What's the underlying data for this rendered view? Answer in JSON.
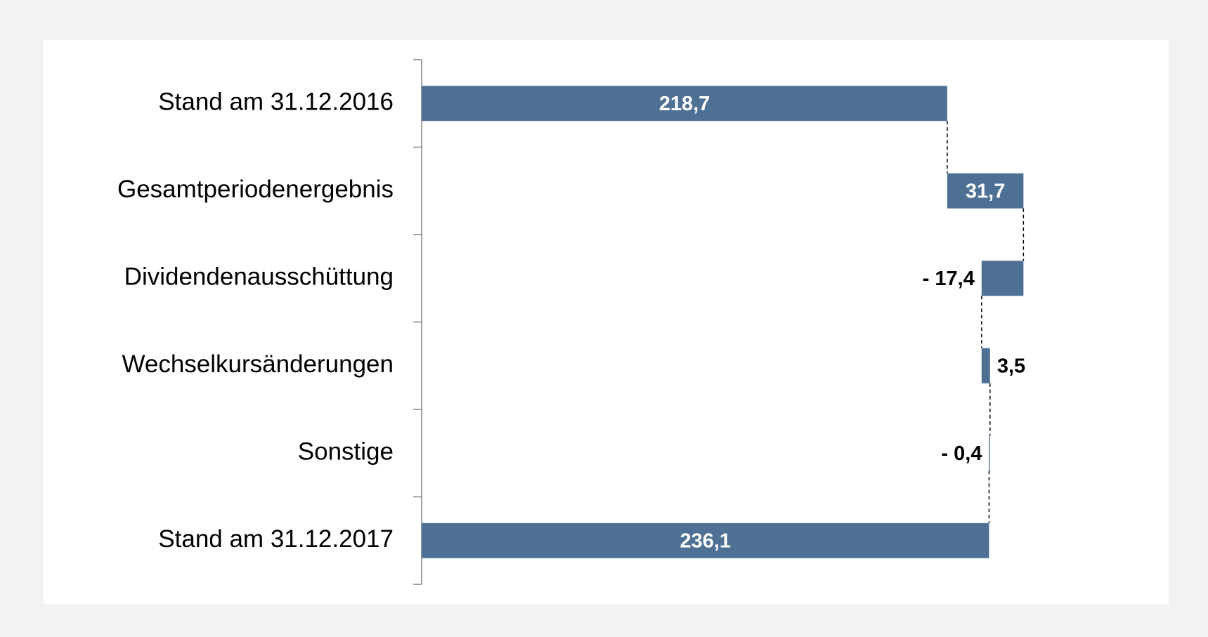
{
  "chart_data": {
    "type": "waterfall",
    "categories": [
      "Stand am 31.12.2016",
      "Gesamtperiodenergebnis",
      "Dividendenausschüttung",
      "Wechselkursänderungen",
      "Sonstige",
      "Stand am 31.12.2017"
    ],
    "measure": [
      "absolute",
      "relative",
      "relative",
      "relative",
      "relative",
      "absolute"
    ],
    "values": [
      218.7,
      31.7,
      -17.4,
      3.5,
      -0.4,
      236.1
    ],
    "value_labels": [
      "218,7",
      "31,7",
      "- 17,4",
      "3,5",
      "- 0,4",
      "236,1"
    ],
    "color": "#4d7094",
    "xlim": [
      0,
      300
    ]
  }
}
